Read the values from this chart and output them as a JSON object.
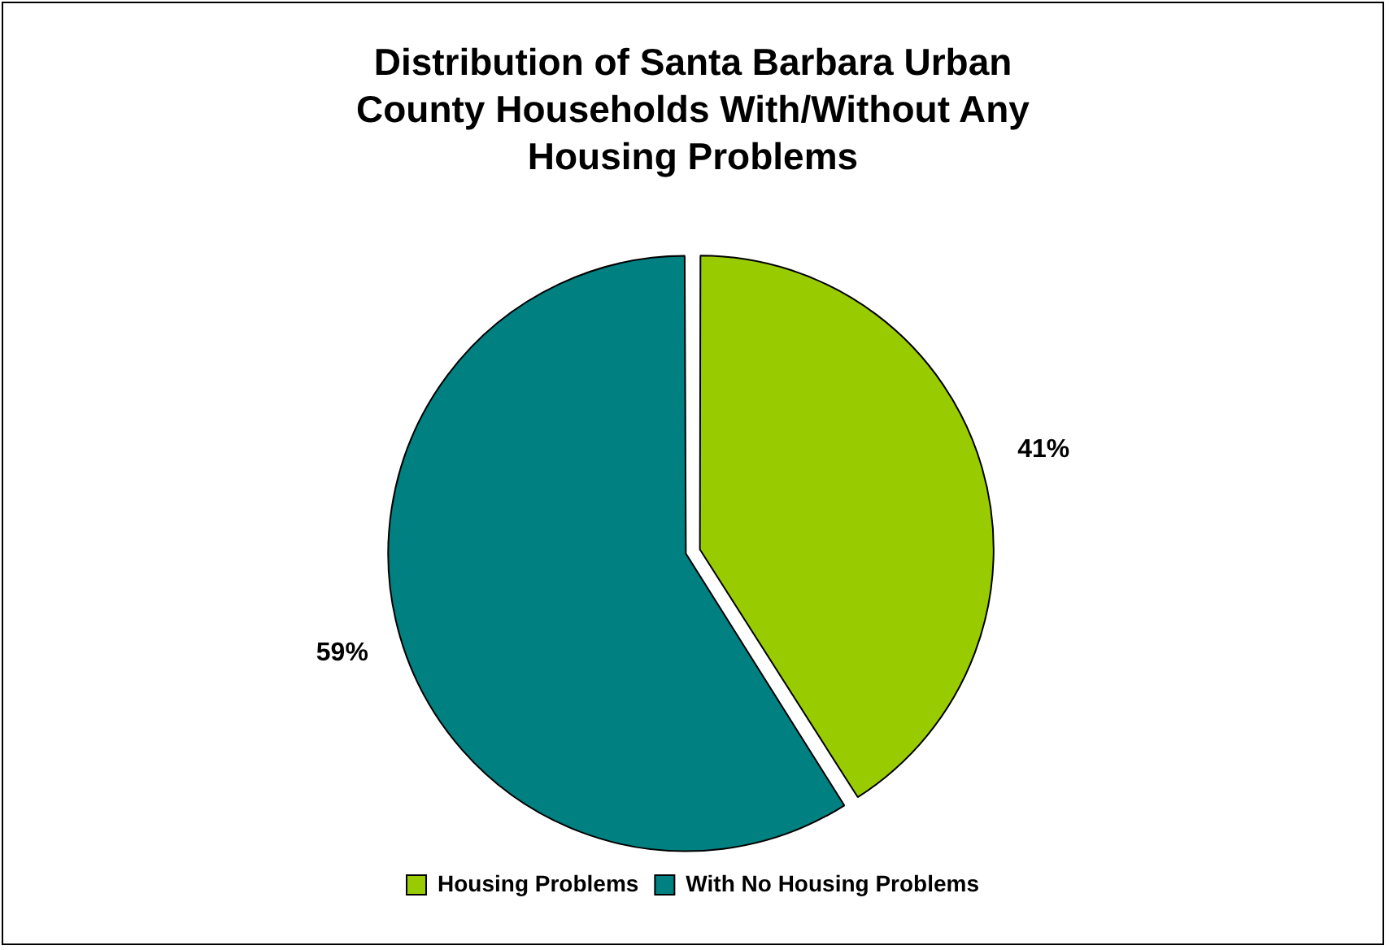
{
  "chart_data": {
    "type": "pie",
    "title": "Distribution of Santa Barbara Urban County Households With/Without Any Housing Problems",
    "categories": [
      "Housing Problems",
      "With No Housing Problems"
    ],
    "values": [
      41,
      59
    ],
    "colors": [
      "#99cc00",
      "#008080"
    ],
    "value_labels": [
      "41%",
      "59%"
    ],
    "legend": "bottom"
  }
}
